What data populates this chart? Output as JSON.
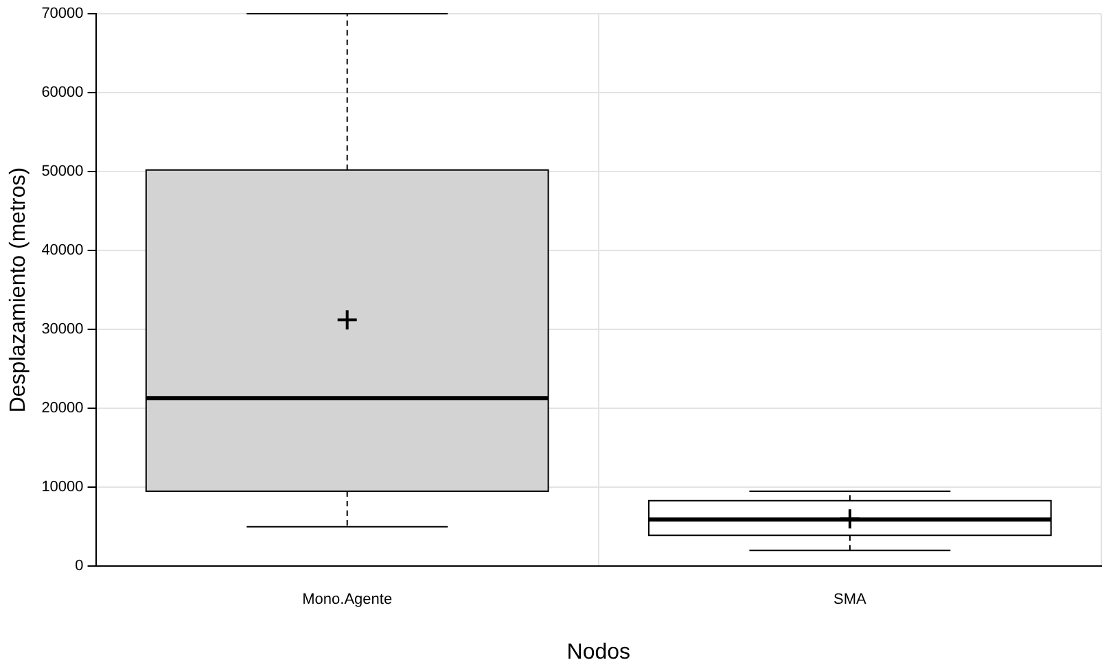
{
  "chart_data": {
    "type": "box",
    "xlabel": "Nodos",
    "ylabel": "Desplazamiento (metros)",
    "categories": [
      "Mono.Agente",
      "SMA"
    ],
    "colors": [
      "#d3d3d3",
      "#ffffff"
    ],
    "boxes": [
      {
        "low": 5000,
        "q1": 9500,
        "median": 21300,
        "q3": 50200,
        "high": 70000,
        "mean": 31200
      },
      {
        "low": 2000,
        "q1": 3900,
        "median": 5900,
        "q3": 8300,
        "high": 9500,
        "mean": 6000
      }
    ],
    "ylim": [
      0,
      70000
    ],
    "yticks": [
      0,
      10000,
      20000,
      30000,
      40000,
      50000,
      60000,
      70000
    ],
    "grid": true,
    "line_style": "dashed",
    "marker": "cross"
  }
}
